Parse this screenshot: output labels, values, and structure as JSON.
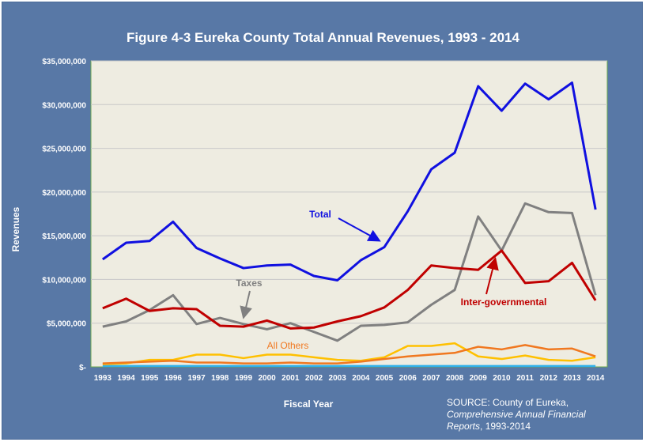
{
  "chart_data": {
    "type": "line",
    "title": "Figure 4-3 Eureka County Total Annual Revenues, 1993 - 2014",
    "xlabel": "Fiscal Year",
    "ylabel": "Revenues",
    "ylim": [
      0,
      35000000
    ],
    "y_ticks": [
      0,
      5000000,
      10000000,
      15000000,
      20000000,
      25000000,
      30000000,
      35000000
    ],
    "y_tick_labels": [
      "$-",
      "$5,000,000",
      "$10,000,000",
      "$15,000,000",
      "$20,000,000",
      "$25,000,000",
      "$30,000,000",
      "$35,000,000"
    ],
    "categories": [
      "1993",
      "1994",
      "1995",
      "1996",
      "1997",
      "1998",
      "1999",
      "2000",
      "2001",
      "2002",
      "2003",
      "2004",
      "2005",
      "2006",
      "2007",
      "2008",
      "2009",
      "2010",
      "2011",
      "2012",
      "2013",
      "2014"
    ],
    "grid": "horizontal",
    "series": [
      {
        "name": "Total",
        "color": "#1010e0",
        "values": [
          12300000,
          14200000,
          14400000,
          16600000,
          13600000,
          12400000,
          11300000,
          11600000,
          11700000,
          10400000,
          9900000,
          12200000,
          13700000,
          17800000,
          22600000,
          24500000,
          32100000,
          29300000,
          32400000,
          30600000,
          32500000,
          18000000
        ]
      },
      {
        "name": "Inter-governmental",
        "color": "#c00000",
        "values": [
          6700000,
          7800000,
          6400000,
          6700000,
          6600000,
          4700000,
          4600000,
          5300000,
          4400000,
          4500000,
          5200000,
          5800000,
          6800000,
          8800000,
          11600000,
          11300000,
          11100000,
          13300000,
          9600000,
          9800000,
          11900000,
          7600000
        ]
      },
      {
        "name": "Taxes",
        "color": "#808080",
        "values": [
          4600000,
          5200000,
          6500000,
          8200000,
          4900000,
          5600000,
          4900000,
          4300000,
          5000000,
          4000000,
          3000000,
          4700000,
          4800000,
          5100000,
          7100000,
          8800000,
          17200000,
          13300000,
          18700000,
          17700000,
          17600000,
          8200000
        ]
      },
      {
        "name": "All Others",
        "color": "#f07820",
        "values": [
          400000,
          500000,
          600000,
          700000,
          500000,
          500000,
          400000,
          400000,
          500000,
          400000,
          400000,
          600000,
          900000,
          1200000,
          1400000,
          1600000,
          2300000,
          2000000,
          2500000,
          2000000,
          2100000,
          1200000
        ]
      },
      {
        "name": "",
        "color": "#ffc000",
        "values": [
          300000,
          400000,
          800000,
          800000,
          1400000,
          1400000,
          1000000,
          1400000,
          1400000,
          1100000,
          800000,
          700000,
          1100000,
          2400000,
          2400000,
          2700000,
          1200000,
          900000,
          1300000,
          800000,
          700000,
          1100000
        ]
      },
      {
        "name": "",
        "color": "#30b0e8",
        "values": [
          100000,
          100000,
          100000,
          100000,
          100000,
          100000,
          100000,
          100000,
          100000,
          100000,
          100000,
          100000,
          100000,
          100000,
          100000,
          100000,
          100000,
          100000,
          100000,
          100000,
          100000,
          100000
        ]
      }
    ],
    "annotations": [
      {
        "text": "Total",
        "series": "Total",
        "arrow_to_category": "2005"
      },
      {
        "text": "Taxes",
        "series": "Taxes",
        "arrow_to_category": "1999"
      },
      {
        "text": "All Others",
        "series": "All Others"
      },
      {
        "text": "Inter-governmental",
        "series": "Inter-governmental",
        "arrow_to_category": "2010"
      }
    ]
  },
  "source": {
    "line1": "SOURCE: County of Eureka,",
    "line2": "Comprehensive Annual Financial",
    "line3_italic": "Reports",
    "line3_rest": ", 1993-2014"
  }
}
